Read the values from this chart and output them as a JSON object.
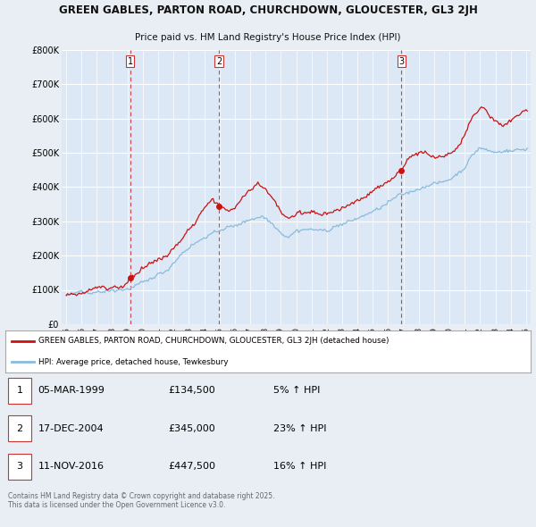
{
  "title_line1": "GREEN GABLES, PARTON ROAD, CHURCHDOWN, GLOUCESTER, GL3 2JH",
  "title_line2": "Price paid vs. HM Land Registry's House Price Index (HPI)",
  "background_color": "#e8eef4",
  "plot_bg_color": "#dce8f5",
  "grid_color": "#ffffff",
  "hpi_color": "#88bbdd",
  "price_color": "#cc1111",
  "sale_markers": [
    {
      "year": 1999.17,
      "price": 134500,
      "label": "1"
    },
    {
      "year": 2004.96,
      "price": 345000,
      "label": "2"
    },
    {
      "year": 2016.86,
      "price": 447500,
      "label": "3"
    }
  ],
  "vline_color": "#cc3333",
  "ylim": [
    0,
    800000
  ],
  "yticks": [
    0,
    100000,
    200000,
    300000,
    400000,
    500000,
    600000,
    700000,
    800000
  ],
  "ytick_labels": [
    "£0",
    "£100K",
    "£200K",
    "£300K",
    "£400K",
    "£500K",
    "£600K",
    "£700K",
    "£800K"
  ],
  "xlim_start": 1994.7,
  "xlim_end": 2025.3,
  "legend_line1": "GREEN GABLES, PARTON ROAD, CHURCHDOWN, GLOUCESTER, GL3 2JH (detached house)",
  "legend_line2": "HPI: Average price, detached house, Tewkesbury",
  "table_rows": [
    {
      "num": "1",
      "date": "05-MAR-1999",
      "price": "£134,500",
      "change": "5% ↑ HPI"
    },
    {
      "num": "2",
      "date": "17-DEC-2004",
      "price": "£345,000",
      "change": "23% ↑ HPI"
    },
    {
      "num": "3",
      "date": "11-NOV-2016",
      "price": "£447,500",
      "change": "16% ↑ HPI"
    }
  ],
  "footnote": "Contains HM Land Registry data © Crown copyright and database right 2025.\nThis data is licensed under the Open Government Licence v3.0.",
  "xtick_years": [
    1995,
    1996,
    1997,
    1998,
    1999,
    2000,
    2001,
    2002,
    2003,
    2004,
    2005,
    2006,
    2007,
    2008,
    2009,
    2010,
    2011,
    2012,
    2013,
    2014,
    2015,
    2016,
    2017,
    2018,
    2019,
    2020,
    2021,
    2022,
    2023,
    2024,
    2025
  ]
}
